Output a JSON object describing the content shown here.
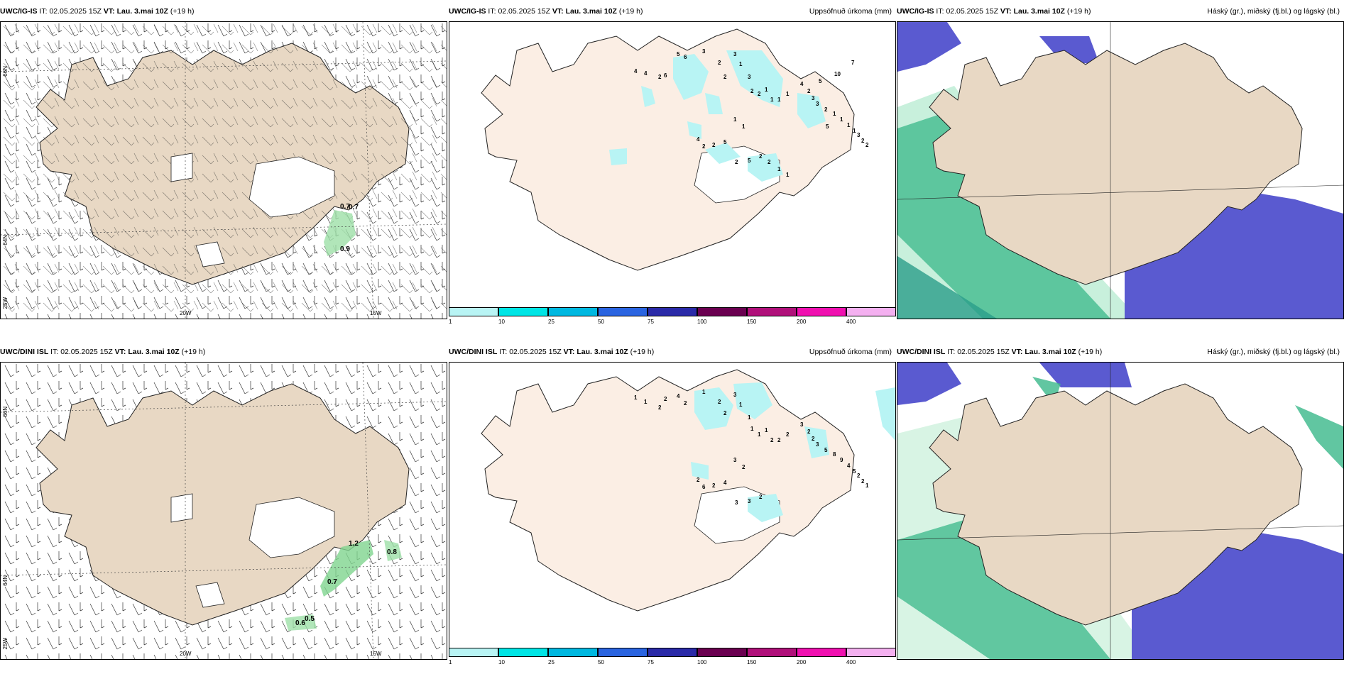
{
  "rows": [
    {
      "model": "UWC/IG-IS",
      "it_label": "IT:",
      "it_value": "02.05.2025 15Z",
      "vt_label": "VT:",
      "vt_value": "Lau. 3.mai 10Z",
      "lead": "(+19 h)",
      "precip_title": "Uppsöfnuð úrkoma (mm)",
      "cloud_title": "Háský (gr.), miðský (fj.bl.) og lágský (bl.)",
      "gust_values": [
        "0.7",
        "0.7",
        "0.9"
      ],
      "precip_values": [
        "4",
        "4",
        "2",
        "6",
        "5",
        "6",
        "3",
        "2",
        "3",
        "2",
        "1",
        "3",
        "2",
        "2",
        "1",
        "1",
        "1",
        "1",
        "4",
        "2",
        "3",
        "3",
        "2",
        "1",
        "1",
        "1",
        "1",
        "3",
        "2",
        "2",
        "5",
        "7",
        "10",
        "5",
        "1",
        "1",
        "4",
        "2",
        "2",
        "5",
        "2",
        "5",
        "2",
        "2",
        "1",
        "1"
      ]
    },
    {
      "model": "UWC/DINI ISL",
      "it_label": "IT:",
      "it_value": "02.05.2025 15Z",
      "vt_label": "VT:",
      "vt_value": "Lau. 3.mai 10Z",
      "lead": "(+19 h)",
      "precip_title": "Uppsöfnuð úrkoma (mm)",
      "cloud_title": "Háský (gr.), miðský (fj.bl.) og lágský (bl.)",
      "gust_values": [
        "1.2",
        "0.8",
        "0.7",
        "0.6",
        "0.5"
      ],
      "precip_values": [
        "1",
        "1",
        "2",
        "2",
        "4",
        "2",
        "1",
        "2",
        "3",
        "2",
        "1",
        "1",
        "1",
        "1",
        "1",
        "2",
        "2",
        "2",
        "3",
        "2",
        "2",
        "3",
        "5",
        "8",
        "9",
        "4",
        "5",
        "2",
        "2",
        "1",
        "3",
        "2",
        "2",
        "6",
        "2",
        "4",
        "3",
        "3",
        "2"
      ]
    }
  ],
  "map_labels": {
    "lat_66": "66N",
    "lat_64": "64N",
    "lon_25": "25W",
    "lon_20": "20W",
    "lon_15": "15W"
  },
  "colorbar": {
    "colors": [
      "#b8f4f4",
      "#00e5e5",
      "#00b8e0",
      "#2a64e0",
      "#2a2aa8",
      "#6a0050",
      "#b0107a",
      "#f010b0",
      "#f4b0f0"
    ],
    "ticks": [
      "1",
      "10",
      "25",
      "50",
      "75",
      "100",
      "150",
      "200",
      "400"
    ]
  },
  "colors": {
    "land": "#e8d8c4",
    "land_precip": "#fbeee4",
    "precip_light": "#b8f4f4",
    "cloud_blue": "#5a5ad0",
    "cloud_green": "#3ab889"
  }
}
